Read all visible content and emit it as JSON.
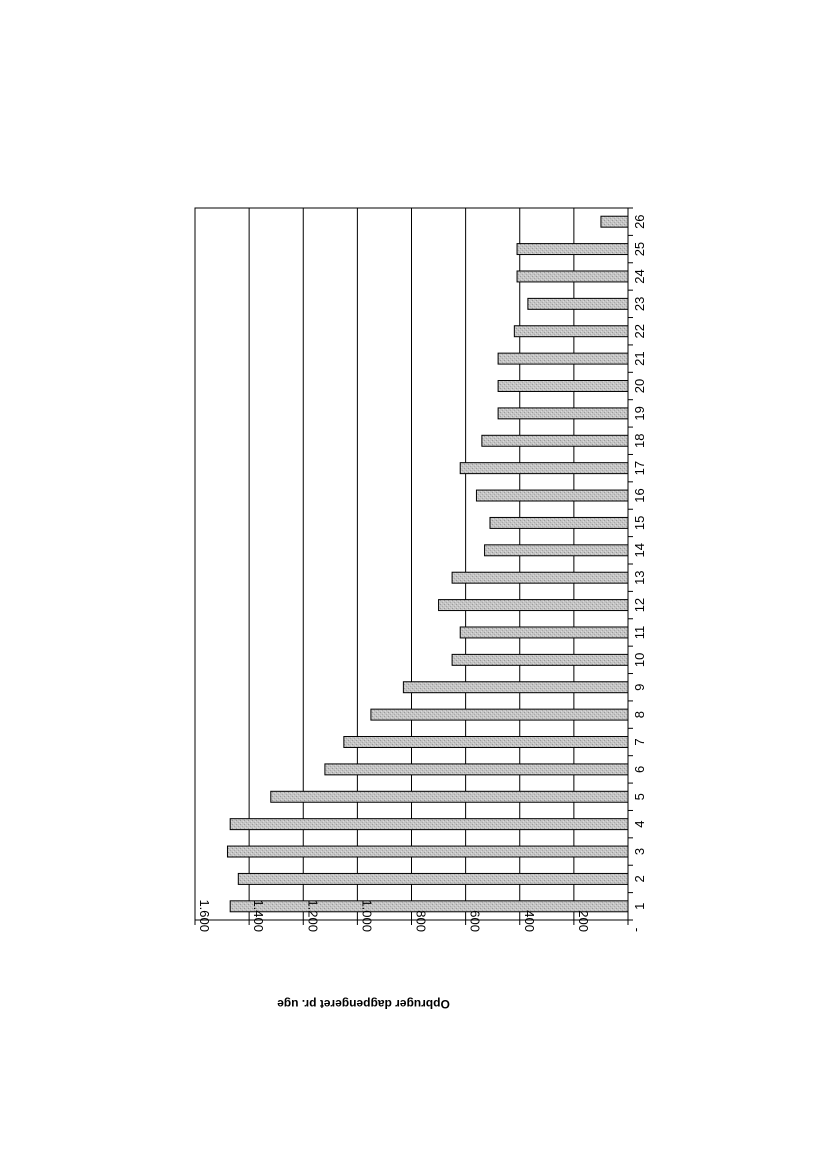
{
  "chart_data": {
    "type": "bar",
    "orientation": "horizontal",
    "categories": [
      "1",
      "2",
      "3",
      "4",
      "5",
      "6",
      "7",
      "8",
      "9",
      "10",
      "11",
      "12",
      "13",
      "14",
      "15",
      "16",
      "17",
      "18",
      "19",
      "20",
      "21",
      "22",
      "23",
      "24",
      "25",
      "26"
    ],
    "values": [
      1470,
      1440,
      1480,
      1470,
      1320,
      1120,
      1050,
      950,
      830,
      650,
      620,
      700,
      650,
      530,
      510,
      560,
      620,
      540,
      480,
      480,
      480,
      420,
      370,
      410,
      410,
      100
    ],
    "xlim": [
      0,
      1600
    ],
    "ticks": [
      {
        "value": 0,
        "label": "-"
      },
      {
        "value": 200,
        "label": "200"
      },
      {
        "value": 400,
        "label": "400"
      },
      {
        "value": 600,
        "label": "600"
      },
      {
        "value": 800,
        "label": "800"
      },
      {
        "value": 1000,
        "label": "1.000"
      },
      {
        "value": 1200,
        "label": "1.200"
      },
      {
        "value": 1400,
        "label": "1.400"
      },
      {
        "value": 1600,
        "label": "1.600"
      }
    ],
    "value_axis_label": "Opbruger dagpengeret pr. uge",
    "category_axis_label": "",
    "title": "",
    "grid": true,
    "legend": "none",
    "rotation": "page rotated 180°",
    "colors": {
      "bar_fill": "#bdbdbd",
      "bar_stroke": "#000000",
      "grid": "#000000"
    }
  }
}
